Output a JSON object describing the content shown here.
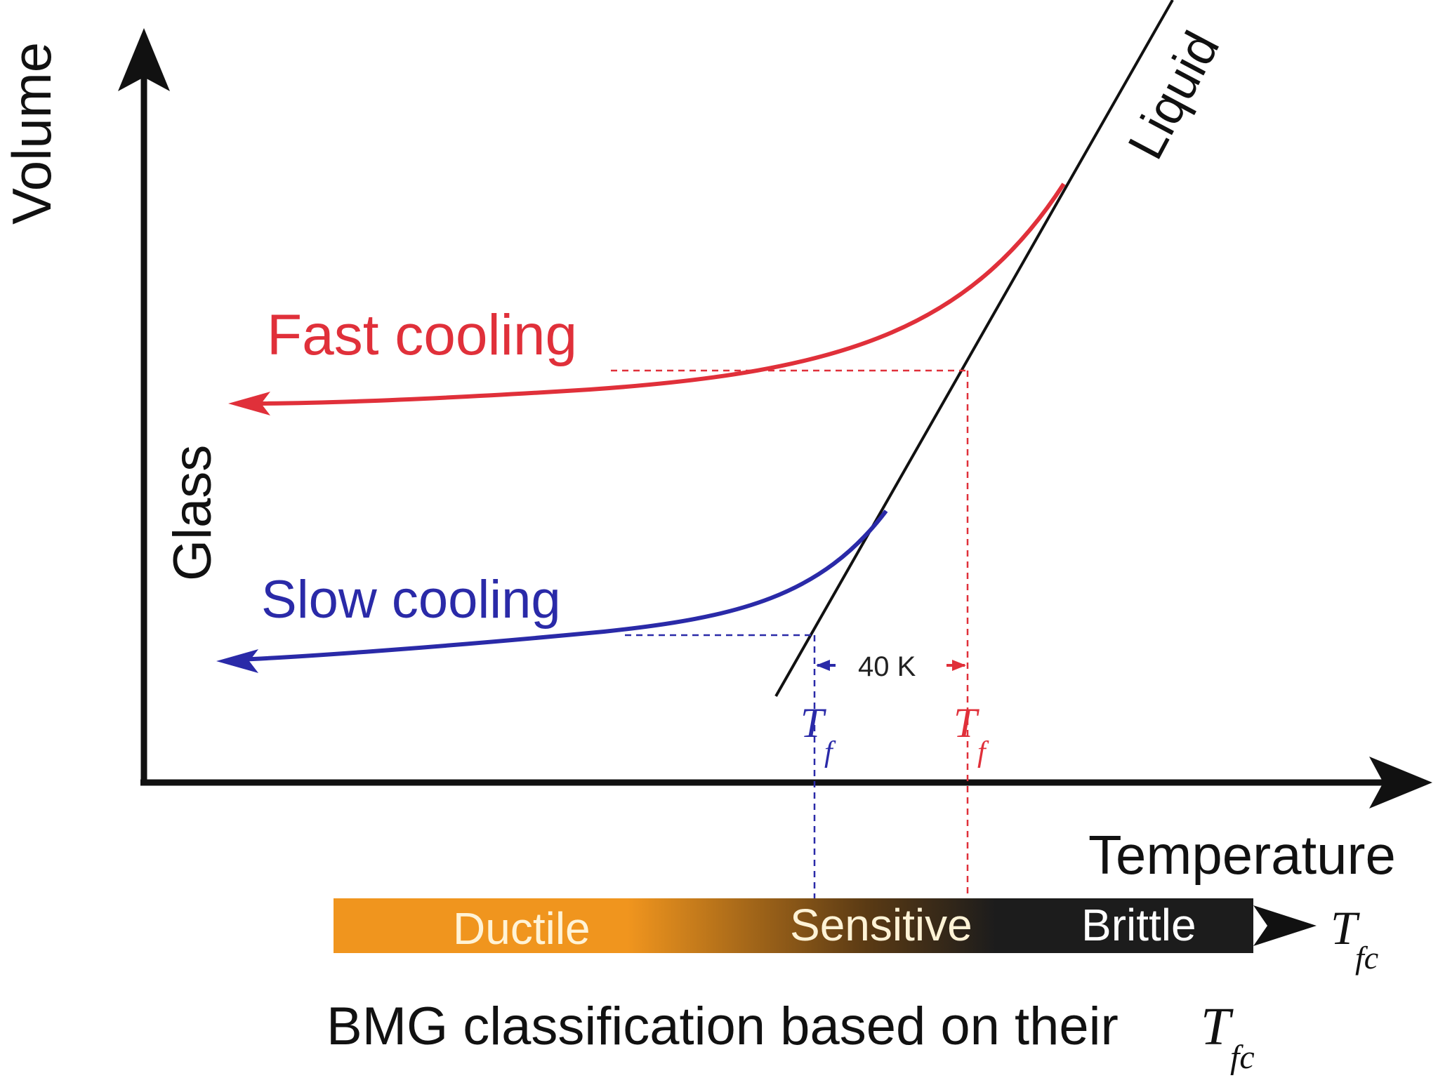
{
  "axes": {
    "y_label": "Volume",
    "x_label": "Temperature"
  },
  "curves": {
    "liquid_label": "Liquid",
    "glass_label": "Glass",
    "fast_label": "Fast cooling",
    "slow_label": "Slow cooling"
  },
  "markers": {
    "delta_label": "40 K",
    "tf_symbol": "T",
    "tf_subscript": "f"
  },
  "scale_bar": {
    "segments": [
      "Ductile",
      "Sensitive",
      "Brittle"
    ],
    "axis_symbol": "T",
    "axis_subscript": "fc"
  },
  "caption": {
    "text": "BMG classification based on their ",
    "symbol": "T",
    "subscript": "fc"
  },
  "colors": {
    "fast": "#e0303a",
    "slow": "#2a2aa8",
    "orange": "#f0951e",
    "dark": "#1a1a1a"
  }
}
